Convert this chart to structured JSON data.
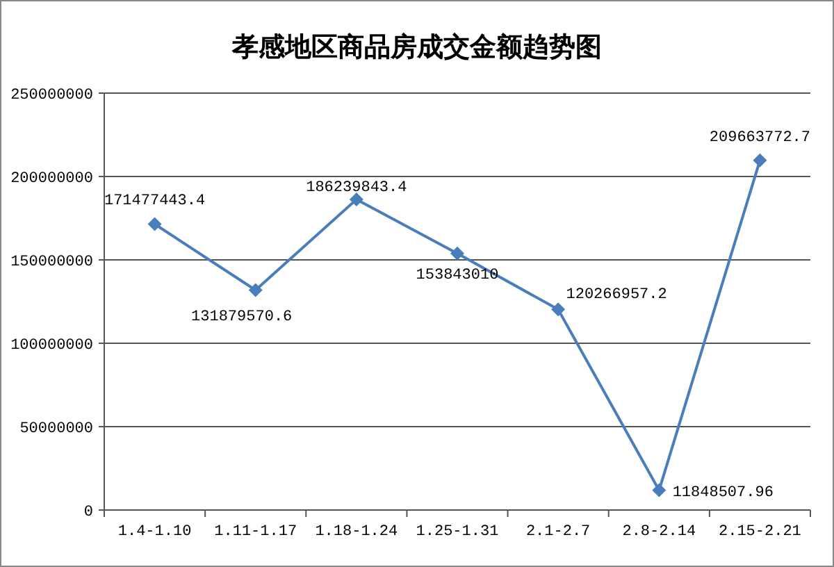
{
  "chart_data": {
    "type": "line",
    "title": "孝感地区商品房成交金额趋势图",
    "categories": [
      "1.4-1.10",
      "1.11-1.17",
      "1.18-1.24",
      "1.25-1.31",
      "2.1-2.7",
      "2.8-2.14",
      "2.15-2.21"
    ],
    "series": [
      {
        "color": "#4a7ebb",
        "values": [
          171477443.4,
          131879570.6,
          186239843.4,
          153843010,
          120266957.2,
          11848507.96,
          209663772.7
        ]
      }
    ],
    "ylim": [
      0,
      250000000
    ],
    "yticks": [
      0,
      50000000,
      100000000,
      150000000,
      200000000,
      250000000
    ],
    "grid": "y",
    "marker": "diamond",
    "data_labels": true
  }
}
